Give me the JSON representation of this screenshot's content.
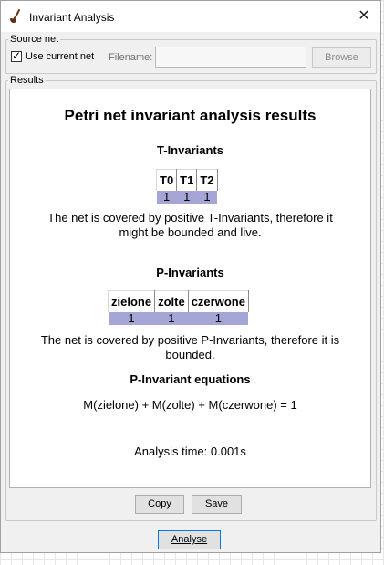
{
  "window": {
    "title": "Invariant Analysis"
  },
  "source_net": {
    "legend": "Source net",
    "use_current_label": "Use current net",
    "use_current_checked": true,
    "filename_label": "Filename:",
    "filename_value": "",
    "browse_label": "Browse"
  },
  "results": {
    "legend": "Results",
    "title": "Petri net invariant analysis results",
    "t_invariants": {
      "heading": "T-Invariants",
      "columns": [
        "T0",
        "T1",
        "T2"
      ],
      "values": [
        "1",
        "1",
        "1"
      ],
      "message_line1": "The net is covered by positive T-Invariants, therefore it",
      "message_line2": "might be bounded and live."
    },
    "p_invariants": {
      "heading": "P-Invariants",
      "columns": [
        "zielone",
        "zolte",
        "czerwone"
      ],
      "values": [
        "1",
        "1",
        "1"
      ],
      "message_line1": "The net is covered by positive P-Invariants, therefore it is",
      "message_line2": "bounded."
    },
    "equations": {
      "heading": "P-Invariant equations",
      "equation": "M(zielone) + M(zolte) + M(czerwone) = 1"
    },
    "analysis_time": "Analysis time: 0.001s"
  },
  "buttons": {
    "copy": "Copy",
    "save": "Save",
    "analyse": "Analyse"
  },
  "colors": {
    "table_value_bg": "#a6a6d6",
    "default_button_border": "#0078d7"
  }
}
